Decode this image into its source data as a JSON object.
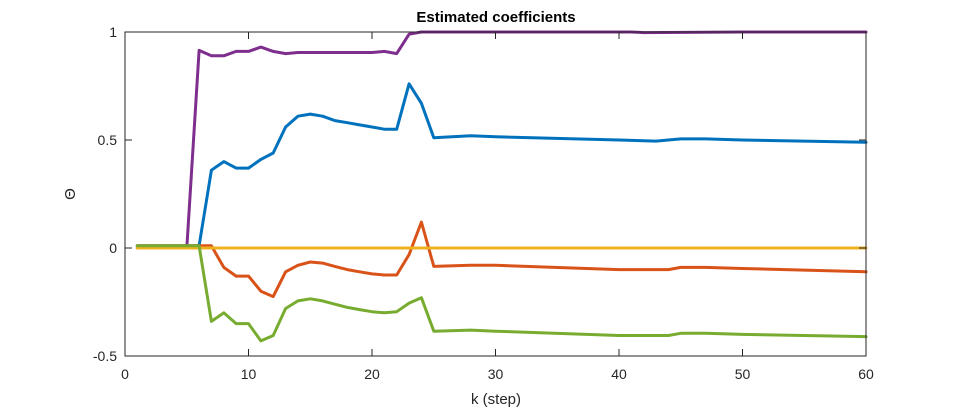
{
  "chart_data": {
    "type": "line",
    "title": "Estimated coefficients",
    "xlabel": "k (step)",
    "ylabel": "Θ",
    "xlim": [
      0,
      60
    ],
    "ylim": [
      -0.5,
      1
    ],
    "xticks": [
      0,
      10,
      20,
      30,
      40,
      50,
      60
    ],
    "yticks": [
      -0.5,
      0,
      0.5,
      1
    ],
    "grid": false,
    "box": true,
    "series": [
      {
        "color": "#7E2F8E",
        "x": [
          1,
          5,
          6,
          7,
          8,
          9,
          10,
          11,
          12,
          13,
          14,
          15,
          20,
          21,
          22,
          23,
          24,
          25,
          30,
          40,
          41,
          42,
          50,
          60
        ],
        "y": [
          0.0,
          0.0,
          0.915,
          0.89,
          0.89,
          0.91,
          0.91,
          0.93,
          0.91,
          0.9,
          0.905,
          0.905,
          0.905,
          0.91,
          0.9,
          0.99,
          1.0,
          1.0,
          1.0,
          1.0,
          1.0,
          0.997,
          1.0,
          1.0
        ]
      },
      {
        "color": "#0072BD",
        "x": [
          1,
          6,
          7,
          8,
          9,
          10,
          11,
          12,
          13,
          14,
          15,
          16,
          17,
          18,
          19,
          20,
          21,
          22,
          23,
          24,
          25,
          28,
          30,
          40,
          43,
          44,
          45,
          47,
          50,
          60
        ],
        "y": [
          0.01,
          0.01,
          0.36,
          0.4,
          0.37,
          0.37,
          0.41,
          0.44,
          0.56,
          0.61,
          0.62,
          0.61,
          0.59,
          0.58,
          0.57,
          0.56,
          0.55,
          0.55,
          0.76,
          0.67,
          0.51,
          0.52,
          0.515,
          0.5,
          0.495,
          0.5,
          0.505,
          0.505,
          0.5,
          0.49
        ]
      },
      {
        "color": "#D95319",
        "x": [
          1,
          7,
          8,
          9,
          10,
          11,
          12,
          13,
          14,
          15,
          16,
          17,
          18,
          19,
          20,
          21,
          22,
          23,
          24,
          25,
          28,
          30,
          40,
          44,
          45,
          47,
          50,
          60
        ],
        "y": [
          0.01,
          0.01,
          -0.09,
          -0.13,
          -0.13,
          -0.2,
          -0.225,
          -0.11,
          -0.08,
          -0.065,
          -0.07,
          -0.085,
          -0.1,
          -0.11,
          -0.12,
          -0.125,
          -0.125,
          -0.03,
          0.12,
          -0.085,
          -0.08,
          -0.08,
          -0.1,
          -0.1,
          -0.09,
          -0.09,
          -0.095,
          -0.11
        ]
      },
      {
        "color": "#EDB120",
        "x": [
          1,
          60
        ],
        "y": [
          0.0,
          0.0
        ]
      },
      {
        "color": "#77AC30",
        "x": [
          1,
          6,
          7,
          8,
          9,
          10,
          11,
          12,
          13,
          14,
          15,
          16,
          17,
          18,
          19,
          20,
          21,
          22,
          23,
          24,
          25,
          28,
          30,
          40,
          44,
          45,
          47,
          50,
          60
        ],
        "y": [
          0.01,
          0.01,
          -0.34,
          -0.3,
          -0.35,
          -0.35,
          -0.43,
          -0.405,
          -0.28,
          -0.245,
          -0.235,
          -0.245,
          -0.26,
          -0.275,
          -0.285,
          -0.295,
          -0.3,
          -0.295,
          -0.255,
          -0.23,
          -0.385,
          -0.38,
          -0.385,
          -0.405,
          -0.405,
          -0.395,
          -0.395,
          -0.4,
          -0.41
        ]
      }
    ]
  }
}
